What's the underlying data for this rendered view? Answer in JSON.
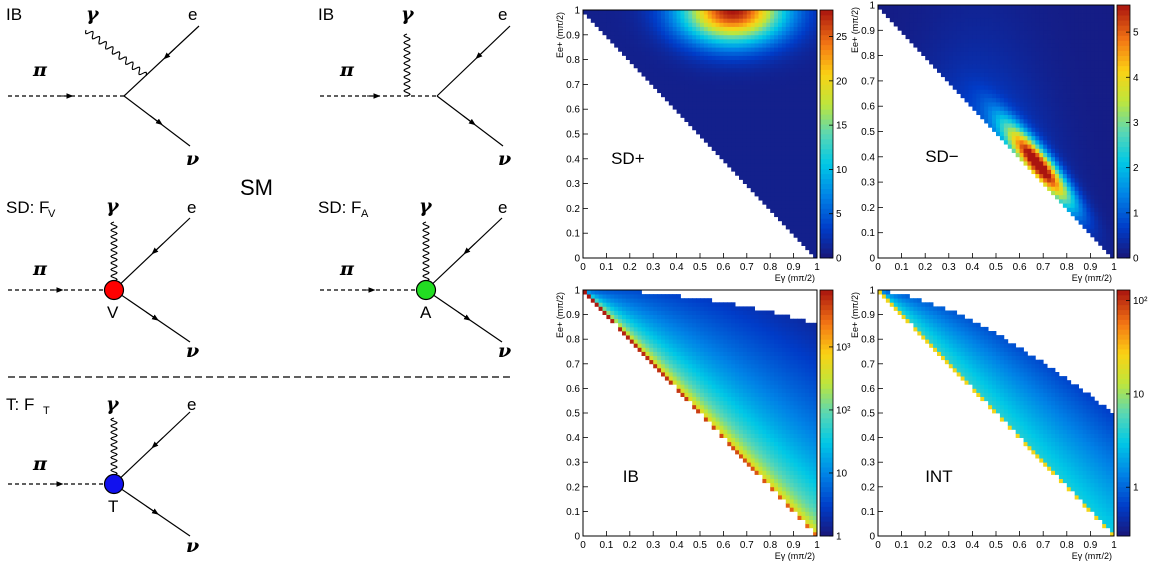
{
  "diagrams": {
    "sm_label": "SM",
    "labels": {
      "ib": "IB",
      "sd_v": "SD: F",
      "sd_v_sub": "V",
      "sd_a": "SD: F",
      "sd_a_sub": "A",
      "t": "T: F",
      "t_sub": "T"
    },
    "particles": {
      "pi": "π",
      "gamma": "γ",
      "e": "e",
      "nu": "ν"
    },
    "vertex_labels": {
      "v": "V",
      "a": "A",
      "t": "T"
    },
    "vertex_colors": {
      "v": "#ff0000",
      "a": "#22dd22",
      "t": "#1111ee"
    }
  },
  "chart_data": [
    {
      "type": "heatmap",
      "label": "SD+",
      "xlabel": "Eγ (mπ/2)",
      "ylabel": "Ee+ (mπ/2)",
      "xlim": [
        0,
        1
      ],
      "ylim": [
        0,
        1
      ],
      "x_ticks": [
        "0",
        "0.1",
        "0.2",
        "0.3",
        "0.4",
        "0.5",
        "0.6",
        "0.7",
        "0.8",
        "0.9",
        "1"
      ],
      "y_ticks": [
        "0",
        "0.1",
        "0.2",
        "0.3",
        "0.4",
        "0.5",
        "0.6",
        "0.7",
        "0.8",
        "0.9",
        "1"
      ],
      "z_scale": "linear",
      "z_ticks": [
        "0",
        "5",
        "10",
        "15",
        "20",
        "25"
      ],
      "zlim": [
        0,
        28
      ],
      "colormap": "rainbow"
    },
    {
      "type": "heatmap",
      "label": "SD−",
      "xlabel": "Eγ (mπ/2)",
      "ylabel": "Ee+ (mπ/2)",
      "xlim": [
        0,
        1
      ],
      "ylim": [
        0,
        1
      ],
      "x_ticks": [
        "0",
        "0.1",
        "0.2",
        "0.3",
        "0.4",
        "0.5",
        "0.6",
        "0.7",
        "0.8",
        "0.9",
        "1"
      ],
      "y_ticks": [
        "0",
        "0.1",
        "0.2",
        "0.3",
        "0.4",
        "0.5",
        "0.6",
        "0.7",
        "0.8",
        "0.9",
        "1"
      ],
      "z_scale": "linear",
      "z_ticks": [
        "0",
        "1",
        "2",
        "3",
        "4",
        "5"
      ],
      "zlim": [
        0,
        5.6
      ],
      "colormap": "rainbow"
    },
    {
      "type": "heatmap",
      "label": "IB",
      "xlabel": "Eγ (mπ/2)",
      "ylabel": "Ee+ (mπ/2)",
      "xlim": [
        0,
        1
      ],
      "ylim": [
        0,
        1
      ],
      "x_ticks": [
        "0",
        "0.1",
        "0.2",
        "0.3",
        "0.4",
        "0.5",
        "0.6",
        "0.7",
        "0.8",
        "0.9",
        "1"
      ],
      "y_ticks": [
        "0",
        "0.1",
        "0.2",
        "0.3",
        "0.4",
        "0.5",
        "0.6",
        "0.7",
        "0.8",
        "0.9",
        "1"
      ],
      "z_scale": "log",
      "z_ticks": [
        "1",
        "10",
        "10²",
        "10³"
      ],
      "zlim": [
        1,
        8000
      ],
      "colormap": "rainbow"
    },
    {
      "type": "heatmap",
      "label": "INT",
      "xlabel": "Eγ (mπ/2)",
      "ylabel": "Ee+ (mπ/2)",
      "xlim": [
        0,
        1
      ],
      "ylim": [
        0,
        1
      ],
      "x_ticks": [
        "0",
        "0.1",
        "0.2",
        "0.3",
        "0.4",
        "0.5",
        "0.6",
        "0.7",
        "0.8",
        "0.9",
        "1"
      ],
      "y_ticks": [
        "0",
        "0.1",
        "0.2",
        "0.3",
        "0.4",
        "0.5",
        "0.6",
        "0.7",
        "0.8",
        "0.9",
        "1"
      ],
      "z_scale": "log",
      "z_ticks": [
        "1",
        "10",
        "10²"
      ],
      "zlim": [
        0.3,
        130
      ],
      "colormap": "rainbow"
    }
  ]
}
